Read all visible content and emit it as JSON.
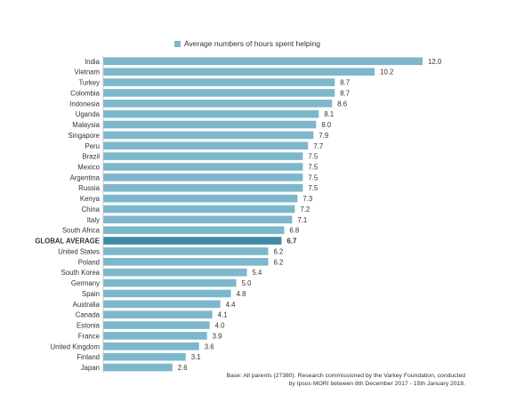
{
  "chart_data": {
    "type": "bar",
    "orientation": "horizontal",
    "series": [
      {
        "name": "Average numbers of hours spent helping",
        "color": "#7db7cc"
      }
    ],
    "highlight_color": "#3f8aa6",
    "categories": [
      "India",
      "Vietnam",
      "Turkey",
      "Colombia",
      "Indonesia",
      "Uganda",
      "Malaysia",
      "Singapore",
      "Peru",
      "Brazil",
      "Mexico",
      "Argentina",
      "Russia",
      "Kenya",
      "China",
      "Italy",
      "South Africa",
      "GLOBAL AVERAGE",
      "United States",
      "Poland",
      "South Korea",
      "Germany",
      "Spain",
      "Australia",
      "Canada",
      "Estonia",
      "France",
      "United Kingdom",
      "Finland",
      "Japan"
    ],
    "values": [
      12.0,
      10.2,
      8.7,
      8.7,
      8.6,
      8.1,
      8.0,
      7.9,
      7.7,
      7.5,
      7.5,
      7.5,
      7.5,
      7.3,
      7.2,
      7.1,
      6.8,
      6.7,
      6.2,
      6.2,
      5.4,
      5.0,
      4.8,
      4.4,
      4.1,
      4.0,
      3.9,
      3.6,
      3.1,
      2.6
    ],
    "value_labels": [
      "12.0",
      "10.2",
      "8.7",
      "8.7",
      "8.6",
      "8.1",
      "8.0",
      "7.9",
      "7.7",
      "7.5",
      "7.5",
      "7.5",
      "7.5",
      "7.3",
      "7.2",
      "7.1",
      "6.8",
      "6.7",
      "6.2",
      "6.2",
      "5.4",
      "5.0",
      "4.8",
      "4.4",
      "4.1",
      "4.0",
      "3.9",
      "3.6",
      "3.1",
      "2.6"
    ],
    "highlight_category": "GLOBAL AVERAGE",
    "legend_position": "top",
    "grid": false,
    "xlim": [
      0,
      12
    ]
  },
  "footnote": {
    "line1": "Base: All parents (27380). Research commissioned by the Varkey Foundation, conducted",
    "line2": "by Ipsos MORI between 8th December 2017 - 15th January 2018."
  }
}
